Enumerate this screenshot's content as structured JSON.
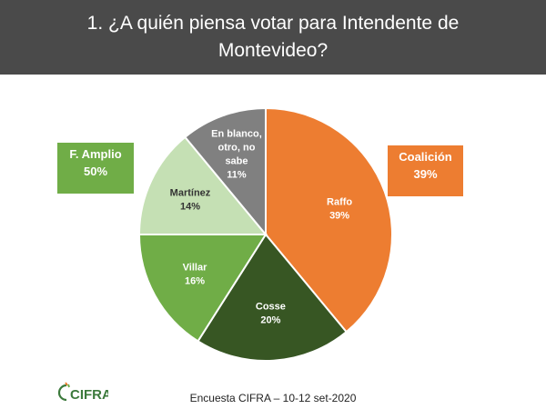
{
  "title": "1. ¿A quién piensa votar para Intendente de Montevideo?",
  "colors": {
    "header_bg": "#4a4a4a",
    "coalicion": "#ed7d31",
    "frente_amplio": "#70ad47"
  },
  "blocs": {
    "left": {
      "name": "F. Amplio",
      "value": "50%"
    },
    "right": {
      "name": "Coalición",
      "value": "39%"
    }
  },
  "chart_data": {
    "type": "pie",
    "slices": [
      {
        "label": "Raffo",
        "value": 39,
        "value_label": "39%",
        "color": "#ed7d31",
        "text_color": "#ffffff"
      },
      {
        "label": "Cosse",
        "value": 20,
        "value_label": "20%",
        "color": "#375623",
        "text_color": "#ffffff"
      },
      {
        "label": "Villar",
        "value": 16,
        "value_label": "16%",
        "color": "#70ad47",
        "text_color": "#ffffff"
      },
      {
        "label": "Martínez",
        "value": 14,
        "value_label": "14%",
        "color": "#c5e0b4",
        "text_color": "#333333"
      },
      {
        "label": "En blanco, otro, no sabe",
        "value": 11,
        "value_label": "11%",
        "color": "#808080",
        "text_color": "#ffffff"
      }
    ]
  },
  "footer": "Encuesta CIFRA – 10-12 set-2020",
  "logo_text": "CIFRA",
  "logo_icon": "cifra-logo-icon"
}
